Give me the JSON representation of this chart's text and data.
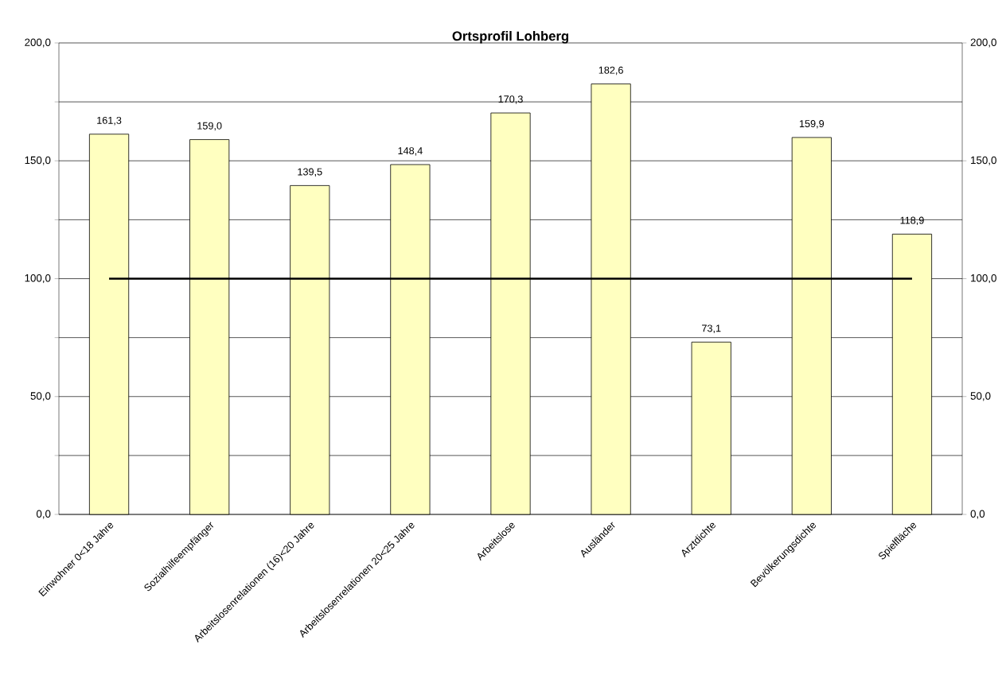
{
  "chart_data": {
    "type": "bar",
    "title": "Ortsprofil Lohberg",
    "categories": [
      "Einwohner 0<18 Jahre",
      "Sozialhilfeempfänger",
      "Arbeitslosenrelationen (16)<20 Jahre",
      "Arbeitslosenrelationen 20<25 Jahre",
      "Arbeitslose",
      "Ausländer",
      "Arztdichte",
      "Bevölkerungsdichte",
      "Spielfläche"
    ],
    "values": [
      161.3,
      159.0,
      139.5,
      148.4,
      170.3,
      182.6,
      73.1,
      159.9,
      118.9
    ],
    "value_labels": [
      "161,3",
      "159,0",
      "139,5",
      "148,4",
      "170,3",
      "182,6",
      "73,1",
      "159,9",
      "118,9"
    ],
    "color": "#ffffc0",
    "ylim": [
      0,
      200
    ],
    "yticks": [
      {
        "value": 0,
        "label": "0,0"
      },
      {
        "value": 25,
        "label": null
      },
      {
        "value": 50,
        "label": "50,0"
      },
      {
        "value": 75,
        "label": null
      },
      {
        "value": 100,
        "label": "100,0"
      },
      {
        "value": 125,
        "label": null
      },
      {
        "value": 150,
        "label": "150,0"
      },
      {
        "value": 175,
        "label": null
      },
      {
        "value": 200,
        "label": "200,0"
      }
    ],
    "y2lim": [
      0,
      200
    ],
    "y2ticks": [
      {
        "value": 0,
        "label": "0,0"
      },
      {
        "value": 50,
        "label": "50,0"
      },
      {
        "value": 100,
        "label": "100,0"
      },
      {
        "value": 150,
        "label": "150,0"
      },
      {
        "value": 200,
        "label": "200,0"
      }
    ],
    "grid": "y",
    "ref_lines": [
      {
        "axis": "y",
        "value": 100,
        "color": "#000000"
      }
    ]
  }
}
